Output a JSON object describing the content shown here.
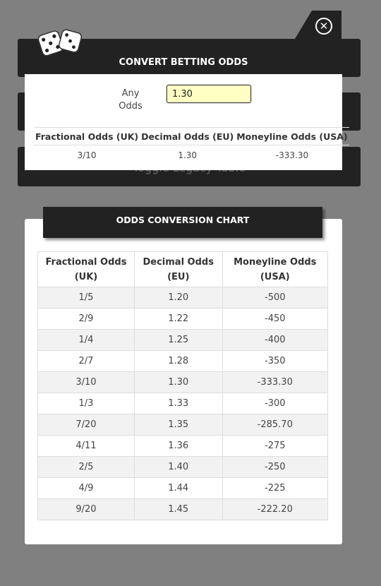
{
  "background_buttons": {
    "bar3_label": "Toggle Legacy Table"
  },
  "converter": {
    "title": "CONVERT BETTING ODDS",
    "input_label": "Any Odds",
    "input_value": "1.30",
    "headers": [
      "Fractional Odds (UK)",
      "Decimal Odds (EU)",
      "Moneyline Odds (USA)"
    ],
    "result": {
      "fractional": "3/10",
      "decimal": "1.30",
      "moneyline": "-333.30"
    }
  },
  "chart": {
    "title": "ODDS CONVERSION CHART",
    "headers": [
      "Fractional Odds (UK)",
      "Decimal Odds (EU)",
      "Moneyline Odds (USA)"
    ],
    "rows": [
      [
        "1/5",
        "1.20",
        "-500"
      ],
      [
        "2/9",
        "1.22",
        "-450"
      ],
      [
        "1/4",
        "1.25",
        "-400"
      ],
      [
        "2/7",
        "1.28",
        "-350"
      ],
      [
        "3/10",
        "1.30",
        "-333.30"
      ],
      [
        "1/3",
        "1.33",
        "-300"
      ],
      [
        "7/20",
        "1.35",
        "-285.70"
      ],
      [
        "4/11",
        "1.36",
        "-275"
      ],
      [
        "2/5",
        "1.40",
        "-250"
      ],
      [
        "4/9",
        "1.44",
        "-225"
      ],
      [
        "9/20",
        "1.45",
        "-222.20"
      ]
    ]
  },
  "icons": {
    "close": "close-circle-icon",
    "logo": "dice-icon"
  },
  "colors": {
    "dark": "#222222",
    "input_bg": "#ffffc4",
    "backdrop": "#808080"
  }
}
